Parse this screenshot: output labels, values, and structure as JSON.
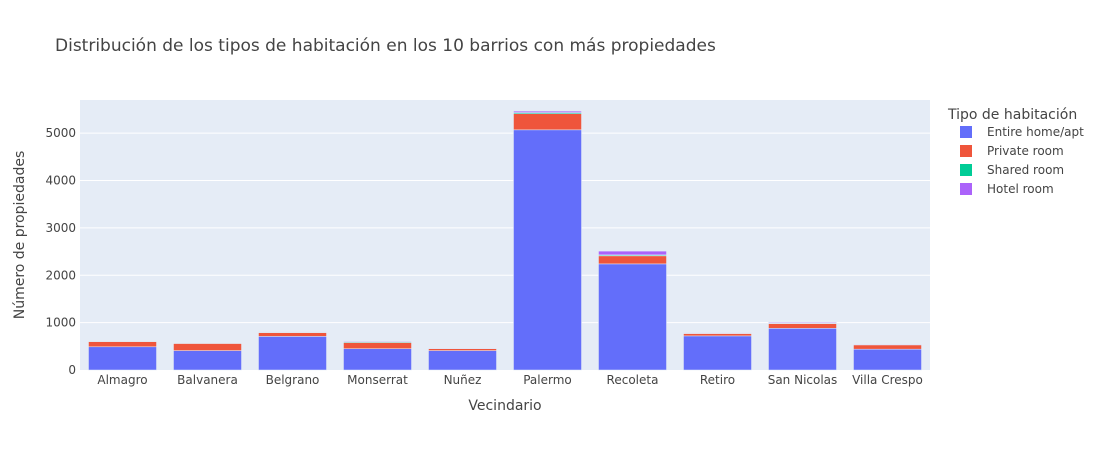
{
  "chart_data": {
    "type": "bar",
    "barmode": "stack",
    "title": "Distribución de los tipos de habitación en los 10 barrios con más propiedades",
    "xlabel": "Vecindario",
    "ylabel": "Número de propiedades",
    "ylim": [
      0,
      5700
    ],
    "yticks": [
      0,
      1000,
      2000,
      3000,
      4000,
      5000
    ],
    "ytick_labels": [
      "0",
      "1000",
      "2000",
      "3000",
      "4000",
      "5000"
    ],
    "grid": true,
    "legend_title": "Tipo de habitación",
    "legend_position": "right",
    "categories": [
      "Almagro",
      "Balvanera",
      "Belgrano",
      "Monserrat",
      "Nuñez",
      "Palermo",
      "Recoleta",
      "Retiro",
      "San Nicolas",
      "Villa Crespo"
    ],
    "series": [
      {
        "name": "Entire home/apt",
        "color": "#636efa",
        "values": [
          490,
          410,
          710,
          450,
          410,
          5070,
          2240,
          720,
          880,
          440
        ]
      },
      {
        "name": "Private room",
        "color": "#ef553b",
        "values": [
          110,
          150,
          80,
          130,
          40,
          340,
          170,
          50,
          100,
          90
        ]
      },
      {
        "name": "Shared room",
        "color": "#00cc96",
        "values": [
          5,
          10,
          5,
          15,
          3,
          25,
          20,
          5,
          10,
          5
        ]
      },
      {
        "name": "Hotel room",
        "color": "#ab63fa",
        "values": [
          5,
          5,
          10,
          15,
          2,
          30,
          80,
          10,
          15,
          5
        ]
      }
    ]
  },
  "colors": {
    "plot_background": "#e5ecf6",
    "grid": "#ffffff",
    "text": "#444444"
  }
}
